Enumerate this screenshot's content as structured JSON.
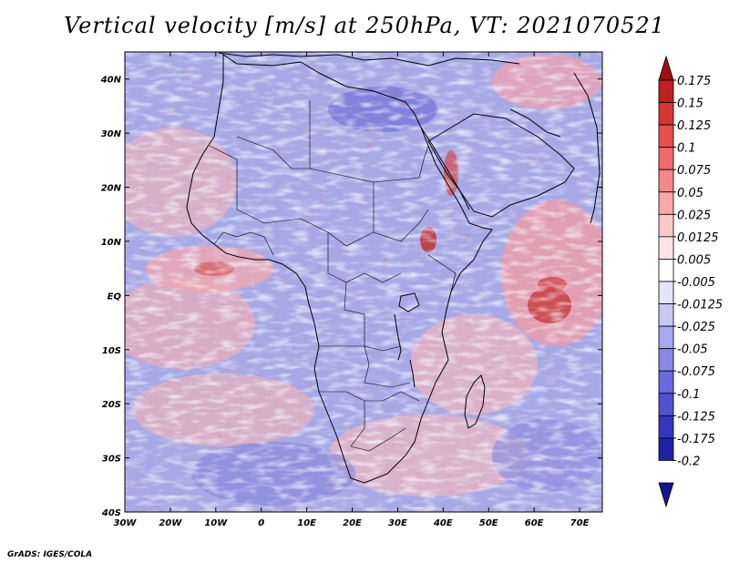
{
  "title": "Vertical velocity [m/s] at 250hPa, VT: 2021070521",
  "credit": "GrADS: IGES/COLA",
  "lat_labels": [
    "40N",
    "30N",
    "20N",
    "10N",
    "EQ",
    "10S",
    "20S",
    "30S",
    "40S"
  ],
  "lon_labels": [
    "30W",
    "20W",
    "10W",
    "0",
    "10E",
    "20E",
    "30E",
    "40E",
    "50E",
    "60E",
    "70E"
  ],
  "colorbar": {
    "labels": [
      "0.175",
      "0.15",
      "0.125",
      "0.1",
      "0.075",
      "0.05",
      "0.025",
      "0.0125",
      "0.005",
      "-0.005",
      "-0.0125",
      "-0.025",
      "-0.05",
      "-0.075",
      "-0.1",
      "-0.125",
      "-0.175",
      "-0.2"
    ],
    "colors": [
      "#a01010",
      "#c02020",
      "#d83535",
      "#e85050",
      "#f06a6a",
      "#f48888",
      "#f8a8a8",
      "#fbc8c8",
      "#fde4e4",
      "#ffffff",
      "#e4e4fb",
      "#c8c8f6",
      "#a8a8f0",
      "#8888e8",
      "#6a6ae0",
      "#5050d0",
      "#3535c0",
      "#2020a8",
      "#151590"
    ]
  },
  "chart_data": {
    "type": "heatmap",
    "title": "Vertical velocity [m/s] at 250hPa, VT: 2021070521",
    "variable": "Vertical velocity",
    "units": "m/s",
    "level": "250hPa",
    "valid_time": "2021070521",
    "lon_range": [
      -30,
      75
    ],
    "lat_range": [
      -40,
      45
    ],
    "x_ticks": [
      "30W",
      "20W",
      "10W",
      "0",
      "10E",
      "20E",
      "30E",
      "40E",
      "50E",
      "60E",
      "70E"
    ],
    "y_ticks": [
      "40N",
      "30N",
      "20N",
      "10N",
      "EQ",
      "10S",
      "20S",
      "30S",
      "40S"
    ],
    "levels": [
      -0.2,
      -0.175,
      -0.125,
      -0.1,
      -0.075,
      -0.05,
      -0.025,
      -0.0125,
      -0.005,
      0.005,
      0.0125,
      0.025,
      0.05,
      0.075,
      0.1,
      0.125,
      0.15,
      0.175
    ]
  }
}
